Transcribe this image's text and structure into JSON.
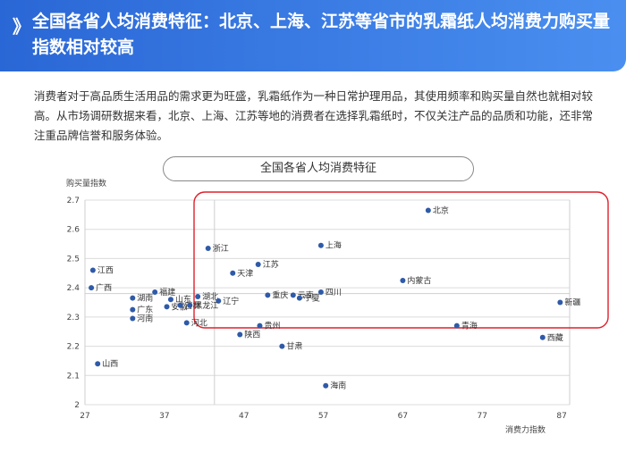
{
  "header": {
    "chevron": "》",
    "title": "全国各省人均消费特征：北京、上海、江苏等省市的乳霜纸人均消费力购买量指数相对较高"
  },
  "intro": "消费者对于高品质生活用品的需求更为旺盛，乳霜纸作为一种日常护理用品，其使用频率和购买量自然也就相对较高。从市场调研数据来看，北京、上海、江苏等地的消费者在选择乳霜纸时，不仅关注产品的品质和功能，还非常注重品牌信誉和服务体验。",
  "chart_data": {
    "type": "scatter",
    "title": "全国各省人均消费特征",
    "xlabel": "消费力指数",
    "ylabel": "购买量指数",
    "xlim": [
      27,
      88
    ],
    "ylim": [
      2.0,
      2.7
    ],
    "xticks": [
      27,
      37,
      47,
      57,
      67,
      77,
      87
    ],
    "yticks": [
      2,
      2.1,
      2.2,
      2.3,
      2.4,
      2.5,
      2.6,
      2.7
    ],
    "ref_x": 43.3,
    "ref_y": 2.38,
    "highlight_color": "#e0202b",
    "point_color": "#2f5aa8",
    "points": [
      {
        "name": "北京",
        "x": 70.2,
        "y": 2.665
      },
      {
        "name": "上海",
        "x": 56.7,
        "y": 2.545
      },
      {
        "name": "浙江",
        "x": 42.5,
        "y": 2.535
      },
      {
        "name": "江苏",
        "x": 48.8,
        "y": 2.48
      },
      {
        "name": "天津",
        "x": 45.6,
        "y": 2.45
      },
      {
        "name": "江西",
        "x": 28.0,
        "y": 2.46
      },
      {
        "name": "广西",
        "x": 27.8,
        "y": 2.4
      },
      {
        "name": "内蒙古",
        "x": 67.0,
        "y": 2.425
      },
      {
        "name": "福建",
        "x": 35.8,
        "y": 2.385
      },
      {
        "name": "湖南",
        "x": 33.0,
        "y": 2.365
      },
      {
        "name": "山东",
        "x": 37.8,
        "y": 2.36
      },
      {
        "name": "湖北",
        "x": 41.2,
        "y": 2.37
      },
      {
        "name": "辽宁",
        "x": 43.8,
        "y": 2.355
      },
      {
        "name": "重庆",
        "x": 50.0,
        "y": 2.375
      },
      {
        "name": "云南",
        "x": 53.2,
        "y": 2.375
      },
      {
        "name": "宁夏",
        "x": 54.0,
        "y": 2.365
      },
      {
        "name": "四川",
        "x": 56.7,
        "y": 2.385
      },
      {
        "name": "新疆",
        "x": 86.8,
        "y": 2.35
      },
      {
        "name": "广东",
        "x": 33.0,
        "y": 2.325
      },
      {
        "name": "安徽",
        "x": 37.3,
        "y": 2.335
      },
      {
        "name": "吉林",
        "x": 39.0,
        "y": 2.34
      },
      {
        "name": "黑龙江",
        "x": 40.2,
        "y": 2.34
      },
      {
        "name": "河南",
        "x": 33.0,
        "y": 2.295
      },
      {
        "name": "河北",
        "x": 39.8,
        "y": 2.28
      },
      {
        "name": "贵州",
        "x": 49.0,
        "y": 2.27
      },
      {
        "name": "青海",
        "x": 73.8,
        "y": 2.27
      },
      {
        "name": "陕西",
        "x": 46.5,
        "y": 2.24
      },
      {
        "name": "西藏",
        "x": 84.6,
        "y": 2.23
      },
      {
        "name": "甘肃",
        "x": 51.8,
        "y": 2.2
      },
      {
        "name": "山西",
        "x": 28.6,
        "y": 2.14
      },
      {
        "name": "海南",
        "x": 57.3,
        "y": 2.065
      }
    ]
  }
}
